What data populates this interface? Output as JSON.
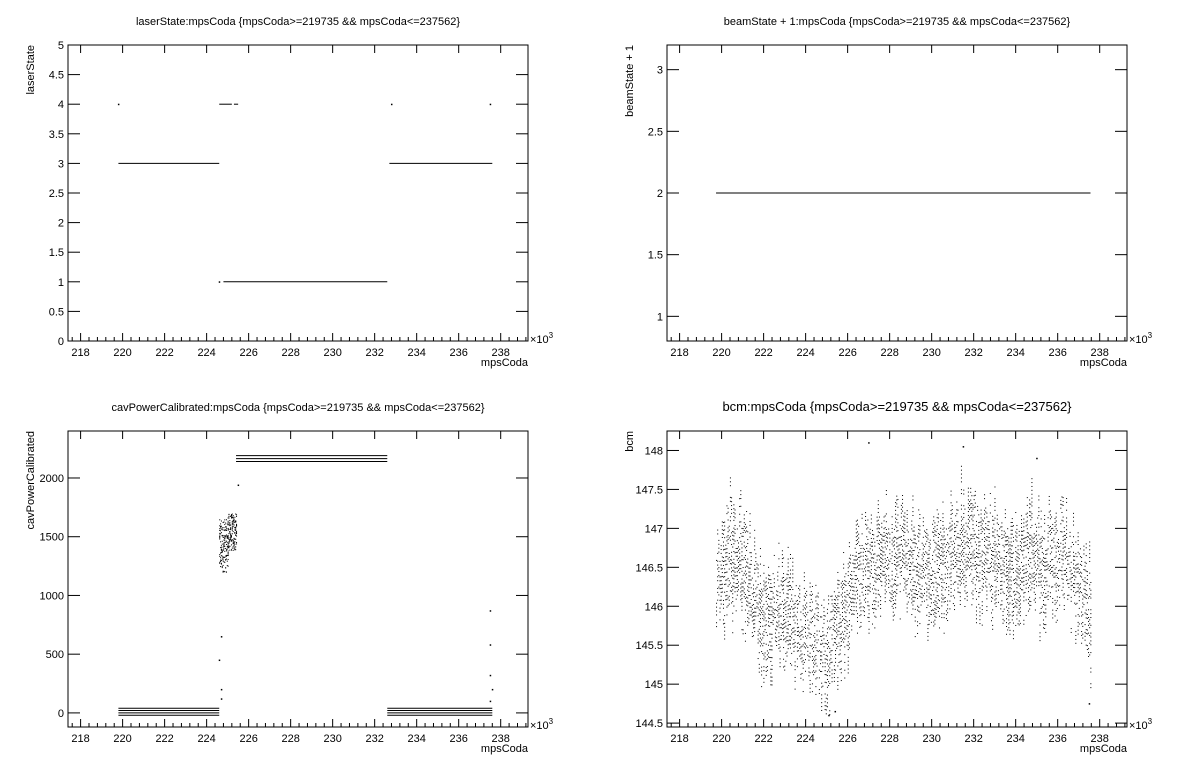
{
  "chart_data": [
    {
      "type": "scatter",
      "title": "laserState:mpsCoda {mpsCoda>=219735 && mpsCoda<=237562}",
      "xlabel": "mpsCoda",
      "ylabel": "laserState",
      "x_multiplier_label": "×10",
      "x_multiplier_exp": "3",
      "xlim": [
        217.4,
        239.3
      ],
      "ylim": [
        0,
        5
      ],
      "xticks": [
        "218",
        "220",
        "222",
        "224",
        "226",
        "228",
        "230",
        "232",
        "234",
        "236",
        "238"
      ],
      "yticks": [
        "0",
        "0.5",
        "1",
        "1.5",
        "2",
        "2.5",
        "3",
        "3.5",
        "4",
        "4.5",
        "5"
      ],
      "segments": [
        {
          "x": [
            219.8,
            224.6
          ],
          "y": 3
        },
        {
          "x": [
            224.8,
            232.6
          ],
          "y": 1
        },
        {
          "x": [
            232.7,
            237.6
          ],
          "y": 3
        },
        {
          "x": [
            224.6,
            225.2
          ],
          "y": 4
        },
        {
          "x": [
            225.3,
            225.5
          ],
          "y": 4
        }
      ],
      "points": [
        {
          "x": 219.8,
          "y": 4
        },
        {
          "x": 224.6,
          "y": 1
        },
        {
          "x": 232.8,
          "y": 4
        },
        {
          "x": 237.5,
          "y": 4
        }
      ]
    },
    {
      "type": "scatter",
      "title": "beamState + 1:mpsCoda {mpsCoda>=219735 && mpsCoda<=237562}",
      "xlabel": "mpsCoda",
      "ylabel": "beamState + 1",
      "x_multiplier_label": "×10",
      "x_multiplier_exp": "3",
      "xlim": [
        217.4,
        239.3
      ],
      "ylim": [
        0.8,
        3.2
      ],
      "xticks": [
        "218",
        "220",
        "222",
        "224",
        "226",
        "228",
        "230",
        "232",
        "234",
        "236",
        "238"
      ],
      "yticks": [
        "1",
        "1.5",
        "2",
        "2.5",
        "3"
      ],
      "segments": [
        {
          "x": [
            219.735,
            237.562
          ],
          "y": 2
        }
      ],
      "points": []
    },
    {
      "type": "scatter",
      "title": "cavPowerCalibrated:mpsCoda {mpsCoda>=219735 && mpsCoda<=237562}",
      "xlabel": "mpsCoda",
      "ylabel": "cavPowerCalibrated",
      "x_multiplier_label": "×10",
      "x_multiplier_exp": "3",
      "xlim": [
        217.4,
        239.3
      ],
      "ylim": [
        -120,
        2400
      ],
      "xticks": [
        "218",
        "220",
        "222",
        "224",
        "226",
        "228",
        "230",
        "232",
        "234",
        "236",
        "238"
      ],
      "yticks": [
        "0",
        "500",
        "1000",
        "1500",
        "2000"
      ],
      "segments": [
        {
          "x": [
            219.8,
            224.6
          ],
          "y": 40
        },
        {
          "x": [
            219.8,
            224.6
          ],
          "y": 20
        },
        {
          "x": [
            219.8,
            224.6
          ],
          "y": 0
        },
        {
          "x": [
            219.8,
            224.6
          ],
          "y": -20
        },
        {
          "x": [
            232.6,
            237.6
          ],
          "y": 40
        },
        {
          "x": [
            232.6,
            237.6
          ],
          "y": 20
        },
        {
          "x": [
            232.6,
            237.6
          ],
          "y": 0
        },
        {
          "x": [
            232.6,
            237.6
          ],
          "y": -20
        },
        {
          "x": [
            225.4,
            232.6
          ],
          "y": 2190
        },
        {
          "x": [
            225.4,
            232.6
          ],
          "y": 2165
        },
        {
          "x": [
            225.4,
            232.6
          ],
          "y": 2140
        }
      ],
      "clusters": [
        {
          "x": [
            224.6,
            225.0
          ],
          "y": [
            1200,
            1650
          ]
        },
        {
          "x": [
            225.0,
            225.4
          ],
          "y": [
            1380,
            1700
          ]
        }
      ],
      "points": [
        {
          "x": 224.7,
          "y": 650
        },
        {
          "x": 224.6,
          "y": 450
        },
        {
          "x": 224.7,
          "y": 200
        },
        {
          "x": 224.7,
          "y": 120
        },
        {
          "x": 225.5,
          "y": 1940
        },
        {
          "x": 237.5,
          "y": 870
        },
        {
          "x": 237.5,
          "y": 580
        },
        {
          "x": 237.5,
          "y": 320
        },
        {
          "x": 237.6,
          "y": 200
        },
        {
          "x": 237.5,
          "y": 100
        }
      ]
    },
    {
      "type": "scatter",
      "title": "bcm:mpsCoda {mpsCoda>=219735 && mpsCoda<=237562}",
      "xlabel": "mpsCoda",
      "ylabel": "bcm",
      "x_multiplier_label": "×10",
      "x_multiplier_exp": "3",
      "xlim": [
        217.4,
        239.3
      ],
      "ylim": [
        144.45,
        148.25
      ],
      "xticks": [
        "218",
        "220",
        "222",
        "224",
        "226",
        "228",
        "230",
        "232",
        "234",
        "236",
        "238"
      ],
      "yticks": [
        "144.5",
        "145",
        "145.5",
        "146",
        "146.5",
        "147",
        "147.5",
        "148"
      ],
      "band": {
        "x_range": [
          219.735,
          237.562
        ],
        "centers": [
          {
            "x": 219.7,
            "y": 146.3
          },
          {
            "x": 220.3,
            "y": 146.6
          },
          {
            "x": 220.9,
            "y": 146.7
          },
          {
            "x": 221.5,
            "y": 146.1
          },
          {
            "x": 222.0,
            "y": 145.8
          },
          {
            "x": 222.6,
            "y": 145.9
          },
          {
            "x": 223.2,
            "y": 146.0
          },
          {
            "x": 223.8,
            "y": 145.7
          },
          {
            "x": 224.4,
            "y": 145.6
          },
          {
            "x": 225.0,
            "y": 145.4
          },
          {
            "x": 225.6,
            "y": 145.7
          },
          {
            "x": 226.2,
            "y": 146.2
          },
          {
            "x": 226.8,
            "y": 146.6
          },
          {
            "x": 227.4,
            "y": 146.5
          },
          {
            "x": 228.0,
            "y": 146.6
          },
          {
            "x": 228.6,
            "y": 146.8
          },
          {
            "x": 229.2,
            "y": 146.4
          },
          {
            "x": 229.8,
            "y": 146.5
          },
          {
            "x": 230.4,
            "y": 146.6
          },
          {
            "x": 231.0,
            "y": 146.7
          },
          {
            "x": 231.6,
            "y": 146.8
          },
          {
            "x": 232.2,
            "y": 146.7
          },
          {
            "x": 232.8,
            "y": 146.5
          },
          {
            "x": 233.4,
            "y": 146.6
          },
          {
            "x": 234.0,
            "y": 146.3
          },
          {
            "x": 234.6,
            "y": 146.7
          },
          {
            "x": 235.2,
            "y": 146.5
          },
          {
            "x": 235.8,
            "y": 146.7
          },
          {
            "x": 236.4,
            "y": 146.6
          },
          {
            "x": 237.0,
            "y": 146.4
          },
          {
            "x": 237.56,
            "y": 145.8
          }
        ],
        "half_width": 0.55
      },
      "points": [
        {
          "x": 227.0,
          "y": 148.1
        },
        {
          "x": 231.5,
          "y": 148.05
        },
        {
          "x": 235.0,
          "y": 147.9
        },
        {
          "x": 225.1,
          "y": 144.6
        },
        {
          "x": 225.4,
          "y": 144.65
        },
        {
          "x": 237.5,
          "y": 144.75
        }
      ]
    }
  ]
}
